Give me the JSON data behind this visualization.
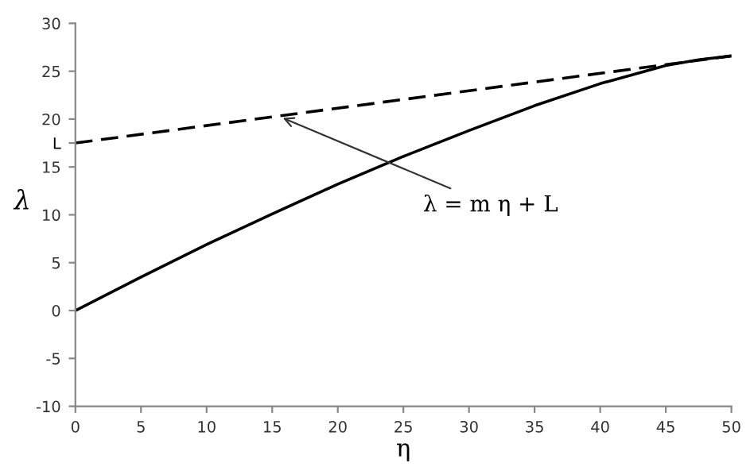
{
  "chart_data": {
    "type": "line",
    "xlabel": "η",
    "ylabel": "λ",
    "xlim": [
      0,
      50
    ],
    "ylim": [
      -10,
      30
    ],
    "xticks": [
      0,
      5,
      10,
      15,
      20,
      25,
      30,
      35,
      40,
      45,
      50
    ],
    "yticks": [
      -10,
      -5,
      0,
      5,
      10,
      15,
      {
        "value": 17.5,
        "label": "L"
      },
      20,
      25,
      30
    ],
    "grid": false,
    "legend": false,
    "series": [
      {
        "color": "#000000",
        "line_style": "solid",
        "x": [
          0,
          5,
          10,
          15,
          20,
          25,
          30,
          35,
          40,
          45,
          47.5,
          50
        ],
        "values": [
          0,
          3.5,
          6.9,
          10.1,
          13.2,
          16.1,
          18.8,
          21.4,
          23.7,
          25.6,
          26.2,
          26.6
        ]
      },
      {
        "color": "#000000",
        "line_style": "dashed",
        "x": [
          0,
          50
        ],
        "values": [
          17.5,
          26.6
        ]
      }
    ],
    "annotations": [
      {
        "text": "λ = m η + L",
        "x": 15.5,
        "y": 20.3
      }
    ]
  }
}
